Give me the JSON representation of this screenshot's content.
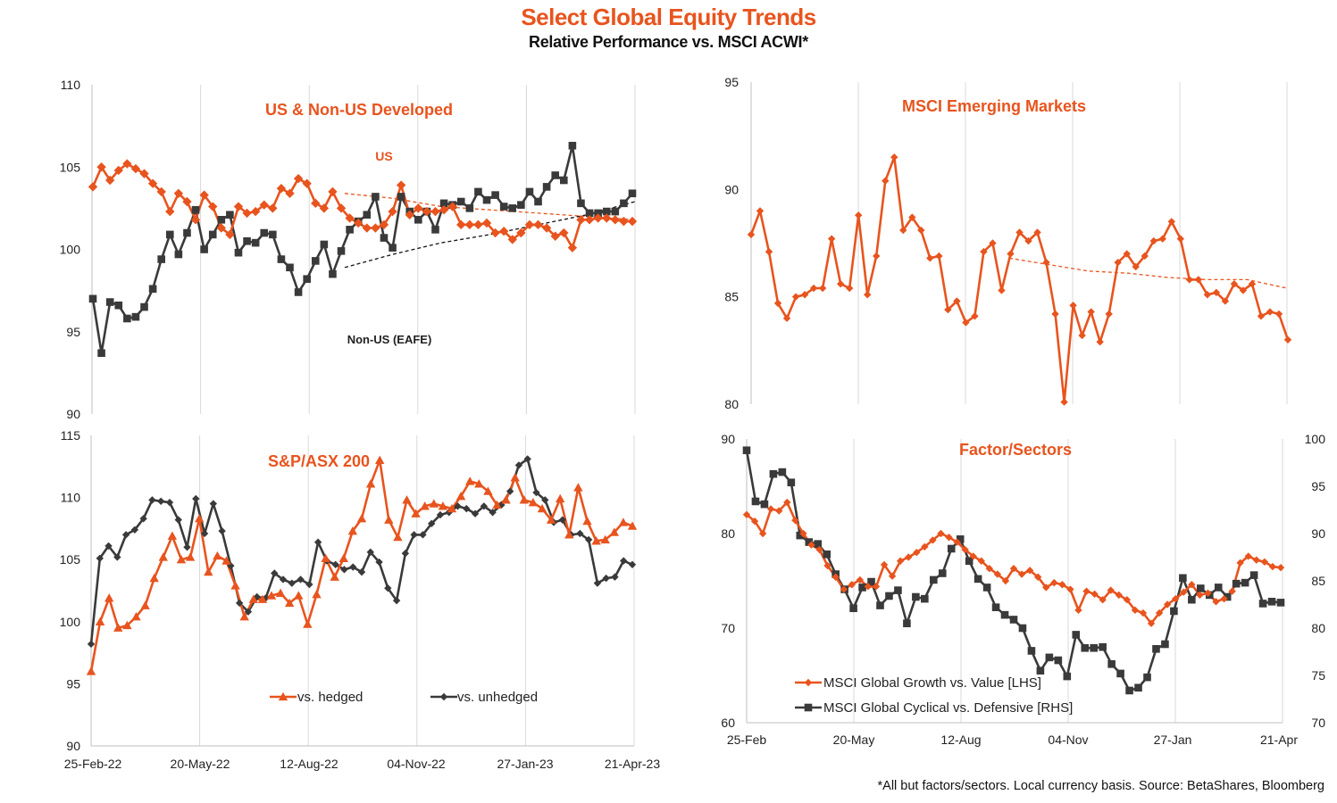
{
  "title": "Select Global Equity Trends",
  "subtitle": "Relative Performance vs. MSCI ACWI*",
  "footnote": "*All but factors/sectors. Local currency basis. Source: BetaShares, Bloomberg",
  "colors": {
    "orange": "#e8541e",
    "dark": "#3a3a3a",
    "grid": "#d9d9d9"
  },
  "chart_data": [
    {
      "id": "us-developed",
      "type": "line",
      "title": "US & Non-US Developed",
      "ylim": [
        90,
        110
      ],
      "yticks": [
        90,
        95,
        100,
        105,
        110
      ],
      "xticks": [
        "25-Feb-22",
        "20-May-22",
        "12-Aug-22",
        "04-Nov-22",
        "27-Jan-23",
        "21-Apr-23"
      ],
      "annotations": [
        "US",
        "Non-US (EAFE)"
      ],
      "series": [
        {
          "values": [
            103.8,
            105.0,
            104.2,
            104.8,
            105.2,
            104.9,
            104.6,
            104.0,
            103.5,
            102.3,
            103.4,
            102.9,
            101.8,
            103.3,
            102.6,
            101.3,
            100.9,
            102.6,
            102.2,
            102.3,
            102.7,
            102.5,
            103.7,
            103.4,
            104.3,
            104.0,
            102.8,
            102.5,
            103.5,
            102.5,
            101.9,
            101.6,
            101.3,
            101.3,
            101.5,
            102.3,
            103.9,
            102.1,
            102.5,
            102.3,
            102.3,
            102.4,
            102.6,
            101.5,
            101.5,
            101.5,
            101.6,
            101.0,
            101.1,
            100.6,
            101.0,
            101.5,
            101.5,
            101.3,
            100.8,
            101.0,
            100.1,
            101.8,
            101.8,
            101.9,
            101.9,
            101.8,
            101.7,
            101.7
          ]
        },
        {
          "values": [
            97.0,
            93.7,
            96.8,
            96.6,
            95.8,
            95.9,
            96.5,
            97.6,
            99.4,
            100.9,
            99.7,
            101.0,
            102.4,
            100.0,
            100.9,
            101.8,
            102.1,
            99.8,
            100.5,
            100.4,
            101.0,
            100.9,
            99.4,
            98.9,
            97.4,
            98.2,
            99.3,
            100.3,
            98.5,
            99.9,
            101.2,
            101.7,
            102.1,
            103.2,
            100.7,
            100.1,
            103.2,
            102.3,
            101.8,
            102.3,
            101.2,
            102.8,
            102.7,
            102.9,
            102.5,
            103.5,
            103.0,
            103.3,
            102.6,
            102.5,
            102.7,
            103.5,
            102.9,
            103.8,
            104.5,
            104.2,
            106.3,
            102.8,
            102.2,
            102.2,
            102.3,
            102.3,
            102.8,
            103.4
          ]
        },
        {
          "values": [
            103.4,
            103.1,
            102.6,
            102.4,
            102.2,
            102.0,
            101.8
          ]
        },
        {
          "values": [
            98.9,
            99.7,
            100.4,
            100.9,
            101.5,
            102.1,
            102.9
          ]
        }
      ]
    },
    {
      "id": "emerging",
      "type": "line",
      "title": "MSCI Emerging Markets",
      "ylim": [
        80,
        95
      ],
      "yticks": [
        80,
        85,
        90,
        95
      ],
      "series": [
        {
          "values": [
            87.9,
            89.0,
            87.1,
            84.7,
            84.0,
            85.0,
            85.1,
            85.4,
            85.4,
            87.7,
            85.6,
            85.4,
            88.8,
            85.1,
            86.9,
            90.4,
            91.5,
            88.1,
            88.7,
            88.1,
            86.8,
            86.9,
            84.4,
            84.8,
            83.8,
            84.1,
            87.1,
            87.5,
            85.3,
            87.0,
            88.0,
            87.6,
            88.0,
            86.6,
            84.2,
            80.1,
            84.6,
            83.2,
            84.3,
            82.9,
            84.2,
            86.6,
            87.0,
            86.4,
            86.9,
            87.6,
            87.7,
            88.5,
            87.7,
            85.8,
            85.8,
            85.1,
            85.2,
            84.8,
            85.6,
            85.3,
            85.6,
            84.1,
            84.3,
            84.2,
            83.0
          ]
        },
        {
          "values": [
            86.8,
            86.5,
            86.2,
            86.1,
            85.9,
            85.8,
            85.8,
            85.4
          ]
        }
      ]
    },
    {
      "id": "asx200",
      "type": "line",
      "title": "S&P/ASX 200",
      "ylim": [
        90,
        115
      ],
      "yticks": [
        90,
        95,
        100,
        105,
        110,
        115
      ],
      "xticks": [
        "25-Feb-22",
        "20-May-22",
        "12-Aug-22",
        "04-Nov-22",
        "27-Jan-23",
        "21-Apr-23"
      ],
      "legend": [
        "vs. hedged",
        "vs. unhedged"
      ],
      "series": [
        {
          "name": "vs. hedged",
          "values": [
            96.0,
            100.0,
            101.9,
            99.5,
            99.7,
            100.4,
            101.3,
            103.5,
            105.2,
            106.9,
            105.0,
            105.2,
            108.3,
            104.0,
            105.3,
            104.9,
            102.9,
            100.4,
            101.8,
            101.8,
            102.1,
            102.3,
            101.5,
            102.1,
            99.8,
            102.2,
            105.1,
            103.6,
            105.1,
            107.3,
            108.3,
            111.1,
            113.0,
            108.2,
            106.8,
            109.8,
            108.7,
            109.3,
            109.5,
            109.3,
            109.1,
            110.1,
            111.3,
            111.1,
            110.5,
            109.4,
            109.8,
            111.6,
            109.8,
            109.6,
            109.1,
            108.2,
            109.9,
            107.0,
            110.8,
            108.1,
            106.5,
            106.6,
            107.2,
            108.0,
            107.7
          ]
        },
        {
          "name": "vs. unhedged",
          "values": [
            98.2,
            105.1,
            106.1,
            105.2,
            107.0,
            107.4,
            108.3,
            109.8,
            109.7,
            109.6,
            108.2,
            106.0,
            109.9,
            107.1,
            109.5,
            107.3,
            104.5,
            101.5,
            100.8,
            102.0,
            101.9,
            103.9,
            103.4,
            103.1,
            103.4,
            103.0,
            106.4,
            104.9,
            104.6,
            104.2,
            104.4,
            104.0,
            105.6,
            104.8,
            102.7,
            101.7,
            105.5,
            107.0,
            107.0,
            107.9,
            108.6,
            108.8,
            109.3,
            109.1,
            108.7,
            109.3,
            108.8,
            109.4,
            110.5,
            112.6,
            113.1,
            110.4,
            109.8,
            108.0,
            108.2,
            107.0,
            107.1,
            106.6,
            103.1,
            103.5,
            103.6,
            104.9,
            104.6
          ]
        }
      ]
    },
    {
      "id": "factors",
      "type": "line",
      "title": "Factor/Sectors",
      "ylim": [
        60,
        90
      ],
      "yticks": [
        60,
        70,
        80,
        90
      ],
      "ylim_right": [
        70,
        100
      ],
      "yticks_right": [
        70,
        75,
        80,
        85,
        90,
        95,
        100
      ],
      "xticks": [
        "25-Feb",
        "20-May",
        "12-Aug",
        "04-Nov",
        "27-Jan",
        "21-Apr"
      ],
      "legend": [
        "MSCI Global Growth vs. Value [LHS]",
        "MSCI Global Cyclical vs. Defensive [RHS]"
      ],
      "series": [
        {
          "name": "MSCI Global Growth vs. Value [LHS]",
          "axis": "left",
          "values": [
            82.0,
            81.3,
            80.0,
            82.6,
            82.4,
            83.3,
            81.4,
            80.0,
            78.8,
            78.3,
            76.6,
            75.4,
            74.1,
            74.6,
            75.1,
            74.4,
            74.4,
            76.7,
            75.5,
            77.1,
            77.5,
            78.0,
            78.6,
            79.3,
            80.0,
            79.6,
            79.1,
            78.3,
            77.6,
            77.1,
            76.3,
            75.7,
            75.0,
            76.3,
            75.7,
            76.1,
            75.4,
            74.3,
            74.8,
            74.6,
            74.1,
            71.9,
            73.9,
            73.6,
            73.0,
            74.0,
            73.5,
            73.0,
            71.9,
            71.6,
            70.5,
            71.6,
            72.5,
            73.1,
            73.8,
            74.6,
            73.5,
            73.7,
            72.8,
            73.1,
            73.9,
            76.9,
            77.6,
            77.2,
            77.0,
            76.5,
            76.4
          ]
        },
        {
          "name": "MSCI Global Cyclical vs. Defensive [RHS]",
          "axis": "right",
          "values": [
            98.8,
            93.4,
            93.1,
            96.3,
            96.5,
            95.4,
            89.8,
            89.1,
            88.9,
            87.8,
            85.7,
            84.1,
            82.1,
            84.3,
            84.9,
            82.4,
            83.4,
            84.0,
            80.5,
            83.3,
            83.1,
            85.1,
            85.8,
            88.4,
            89.4,
            87.1,
            85.2,
            84.3,
            82.2,
            81.4,
            80.9,
            80.0,
            77.6,
            75.5,
            76.9,
            76.6,
            74.9,
            79.3,
            77.9,
            77.9,
            78.0,
            76.2,
            75.2,
            73.4,
            73.7,
            74.8,
            77.8,
            78.3,
            81.8,
            85.3,
            83.0,
            84.2,
            83.5,
            84.3,
            83.3,
            84.7,
            84.8,
            85.6,
            82.6,
            82.8,
            82.7
          ]
        }
      ]
    }
  ]
}
